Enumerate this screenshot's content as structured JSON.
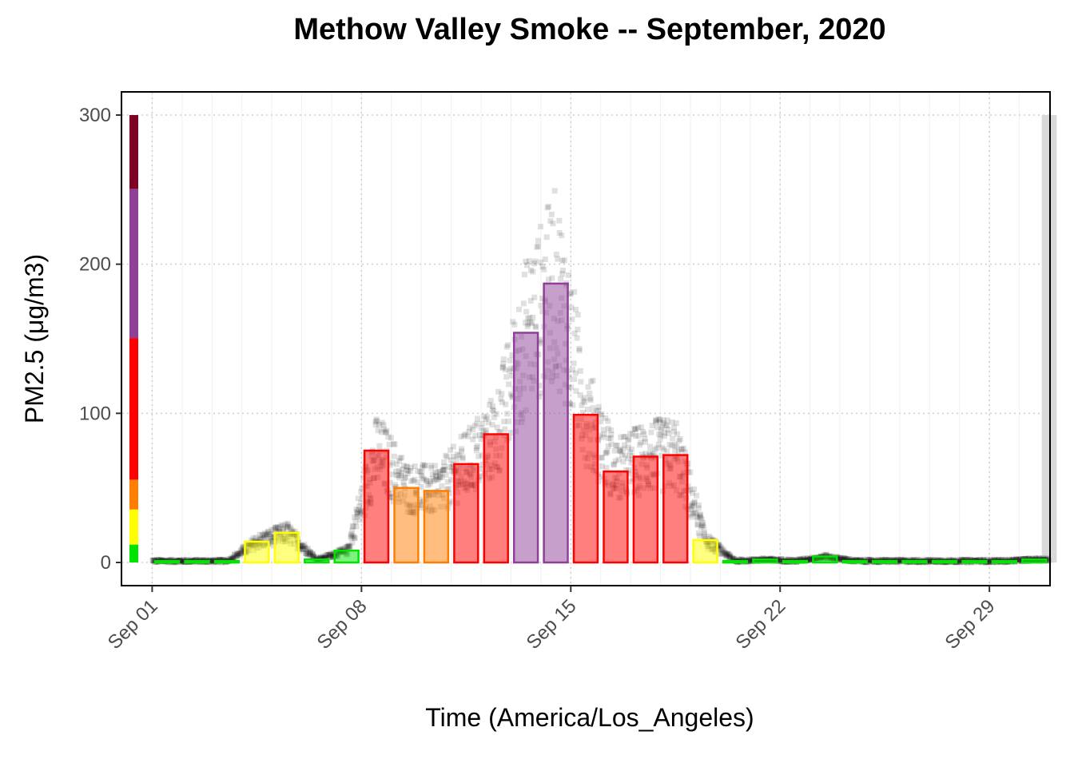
{
  "chart_data": {
    "type": "bar",
    "title": "Methow Valley Smoke -- September, 2020",
    "xlabel": "Time (America/Los_Angeles)",
    "ylabel": "PM2.5 (μg/m3)",
    "ylim": [
      -15,
      315
    ],
    "xlim": [
      "2020-08-31",
      "2020-10-01"
    ],
    "yticks": [
      0,
      100,
      200,
      300
    ],
    "xticks": [
      {
        "date": "2020-09-01",
        "label": "Sep 01"
      },
      {
        "date": "2020-09-08",
        "label": "Sep 08"
      },
      {
        "date": "2020-09-15",
        "label": "Sep 15"
      },
      {
        "date": "2020-09-22",
        "label": "Sep 22"
      },
      {
        "date": "2020-09-29",
        "label": "Sep 29"
      }
    ],
    "grid": true,
    "aqi_scale": [
      {
        "min": 0,
        "max": 12,
        "color": "#00e400"
      },
      {
        "min": 12,
        "max": 35.5,
        "color": "#ffff00"
      },
      {
        "min": 35.5,
        "max": 55.5,
        "color": "#ff7e00"
      },
      {
        "min": 55.5,
        "max": 150.5,
        "color": "#ff0000"
      },
      {
        "min": 150.5,
        "max": 250.5,
        "color": "#8f3f97"
      },
      {
        "min": 250.5,
        "max": 300,
        "color": "#7e0023"
      }
    ],
    "daily_average": {
      "dates": [
        "2020-09-01",
        "2020-09-02",
        "2020-09-03",
        "2020-09-04",
        "2020-09-05",
        "2020-09-06",
        "2020-09-07",
        "2020-09-08",
        "2020-09-09",
        "2020-09-10",
        "2020-09-11",
        "2020-09-12",
        "2020-09-13",
        "2020-09-14",
        "2020-09-15",
        "2020-09-16",
        "2020-09-17",
        "2020-09-18",
        "2020-09-19",
        "2020-09-20",
        "2020-09-21",
        "2020-09-22",
        "2020-09-23",
        "2020-09-24",
        "2020-09-25",
        "2020-09-26",
        "2020-09-27",
        "2020-09-28",
        "2020-09-29",
        "2020-09-30"
      ],
      "values": [
        1,
        1,
        1,
        14,
        20,
        2,
        8,
        75,
        50,
        48,
        66,
        86,
        154,
        187,
        99,
        61,
        71,
        72,
        15,
        1,
        2,
        1,
        4,
        1,
        1,
        1,
        1,
        1,
        1,
        2
      ]
    },
    "hourly": {
      "description_visible": "gray semi-transparent square points of hourly PM2.5 measurements",
      "color": "#000000"
    },
    "missing_data_band": {
      "start": "2020-09-30T18:00",
      "end": "2020-10-01T06:00",
      "max": 300,
      "color": "#d9d9d9"
    }
  }
}
